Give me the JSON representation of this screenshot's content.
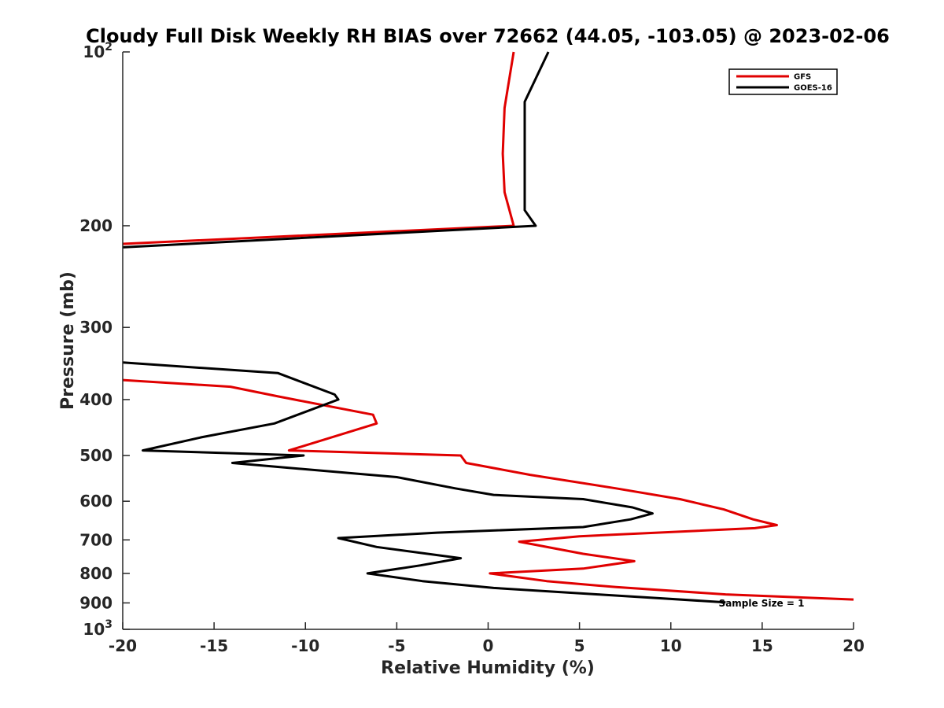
{
  "chart_data": {
    "type": "line",
    "title": "Cloudy Full Disk Weekly RH BIAS over 72662 (44.05, -103.05) @ 2023-02-06",
    "xlabel": "Relative Humidity (%)",
    "ylabel": "Pressure (mb)",
    "xlim": [
      -20,
      20
    ],
    "ylim": [
      100,
      1000
    ],
    "y_scale": "log",
    "y_reversed": true,
    "x_ticks": [
      "-20",
      "-15",
      "-10",
      "-5",
      "0",
      "5",
      "10",
      "15",
      "20"
    ],
    "y_ticks": [
      {
        "value": 100,
        "base": "10",
        "exp": "2"
      },
      {
        "value": 200,
        "label": "200"
      },
      {
        "value": 300,
        "label": "300"
      },
      {
        "value": 400,
        "label": "400"
      },
      {
        "value": 500,
        "label": "500"
      },
      {
        "value": 600,
        "label": "600"
      },
      {
        "value": 700,
        "label": "700"
      },
      {
        "value": 800,
        "label": "800"
      },
      {
        "value": 900,
        "label": "900"
      },
      {
        "value": 1000,
        "base": "10",
        "exp": "3"
      }
    ],
    "legend_position": "top-right",
    "annotation": "Sample Size = 1",
    "series": [
      {
        "name": "GFS",
        "color": "#e00000",
        "points": [
          [
            1.4,
            100
          ],
          [
            0.9,
            125
          ],
          [
            0.8,
            150
          ],
          [
            0.9,
            175
          ],
          [
            1.4,
            200
          ],
          [
            -20,
            215
          ],
          [
            null,
            0
          ],
          [
            -20,
            370
          ],
          [
            -14.1,
            380
          ],
          [
            -11.5,
            395
          ],
          [
            -6.3,
            425
          ],
          [
            -6.1,
            440
          ],
          [
            -10.9,
            490
          ],
          [
            -1.5,
            500
          ],
          [
            -1.2,
            515
          ],
          [
            2.3,
            540
          ],
          [
            7.0,
            570
          ],
          [
            10.5,
            595
          ],
          [
            12.9,
            620
          ],
          [
            14.5,
            645
          ],
          [
            15.8,
            660
          ],
          [
            14.6,
            668
          ],
          [
            5.0,
            690
          ],
          [
            1.7,
            705
          ],
          [
            5.2,
            740
          ],
          [
            8.0,
            762
          ],
          [
            5.2,
            785
          ],
          [
            0.1,
            800
          ],
          [
            3.2,
            825
          ],
          [
            7.0,
            845
          ],
          [
            13.0,
            870
          ],
          [
            20,
            888
          ]
        ]
      },
      {
        "name": "GOES-16",
        "color": "#000000",
        "points": [
          [
            3.3,
            100
          ],
          [
            2.0,
            122
          ],
          [
            2.0,
            150
          ],
          [
            2.0,
            188
          ],
          [
            2.6,
            200
          ],
          [
            -20,
            218
          ],
          [
            null,
            0
          ],
          [
            -20,
            345
          ],
          [
            -11.5,
            360
          ],
          [
            -8.4,
            392
          ],
          [
            -8.2,
            400
          ],
          [
            -11.7,
            440
          ],
          [
            -15.7,
            465
          ],
          [
            -18.9,
            490
          ],
          [
            -10.1,
            500
          ],
          [
            -14.0,
            515
          ],
          [
            -5.0,
            545
          ],
          [
            -1.8,
            570
          ],
          [
            0.3,
            585
          ],
          [
            5.2,
            595
          ],
          [
            7.9,
            615
          ],
          [
            9.0,
            630
          ],
          [
            7.8,
            645
          ],
          [
            5.2,
            665
          ],
          [
            -2.8,
            680
          ],
          [
            -8.2,
            695
          ],
          [
            -6.1,
            720
          ],
          [
            -1.5,
            753
          ],
          [
            -3.7,
            775
          ],
          [
            -6.6,
            800
          ],
          [
            -3.6,
            825
          ],
          [
            0.3,
            848
          ],
          [
            6.0,
            870
          ],
          [
            13.0,
            898
          ]
        ]
      }
    ]
  }
}
